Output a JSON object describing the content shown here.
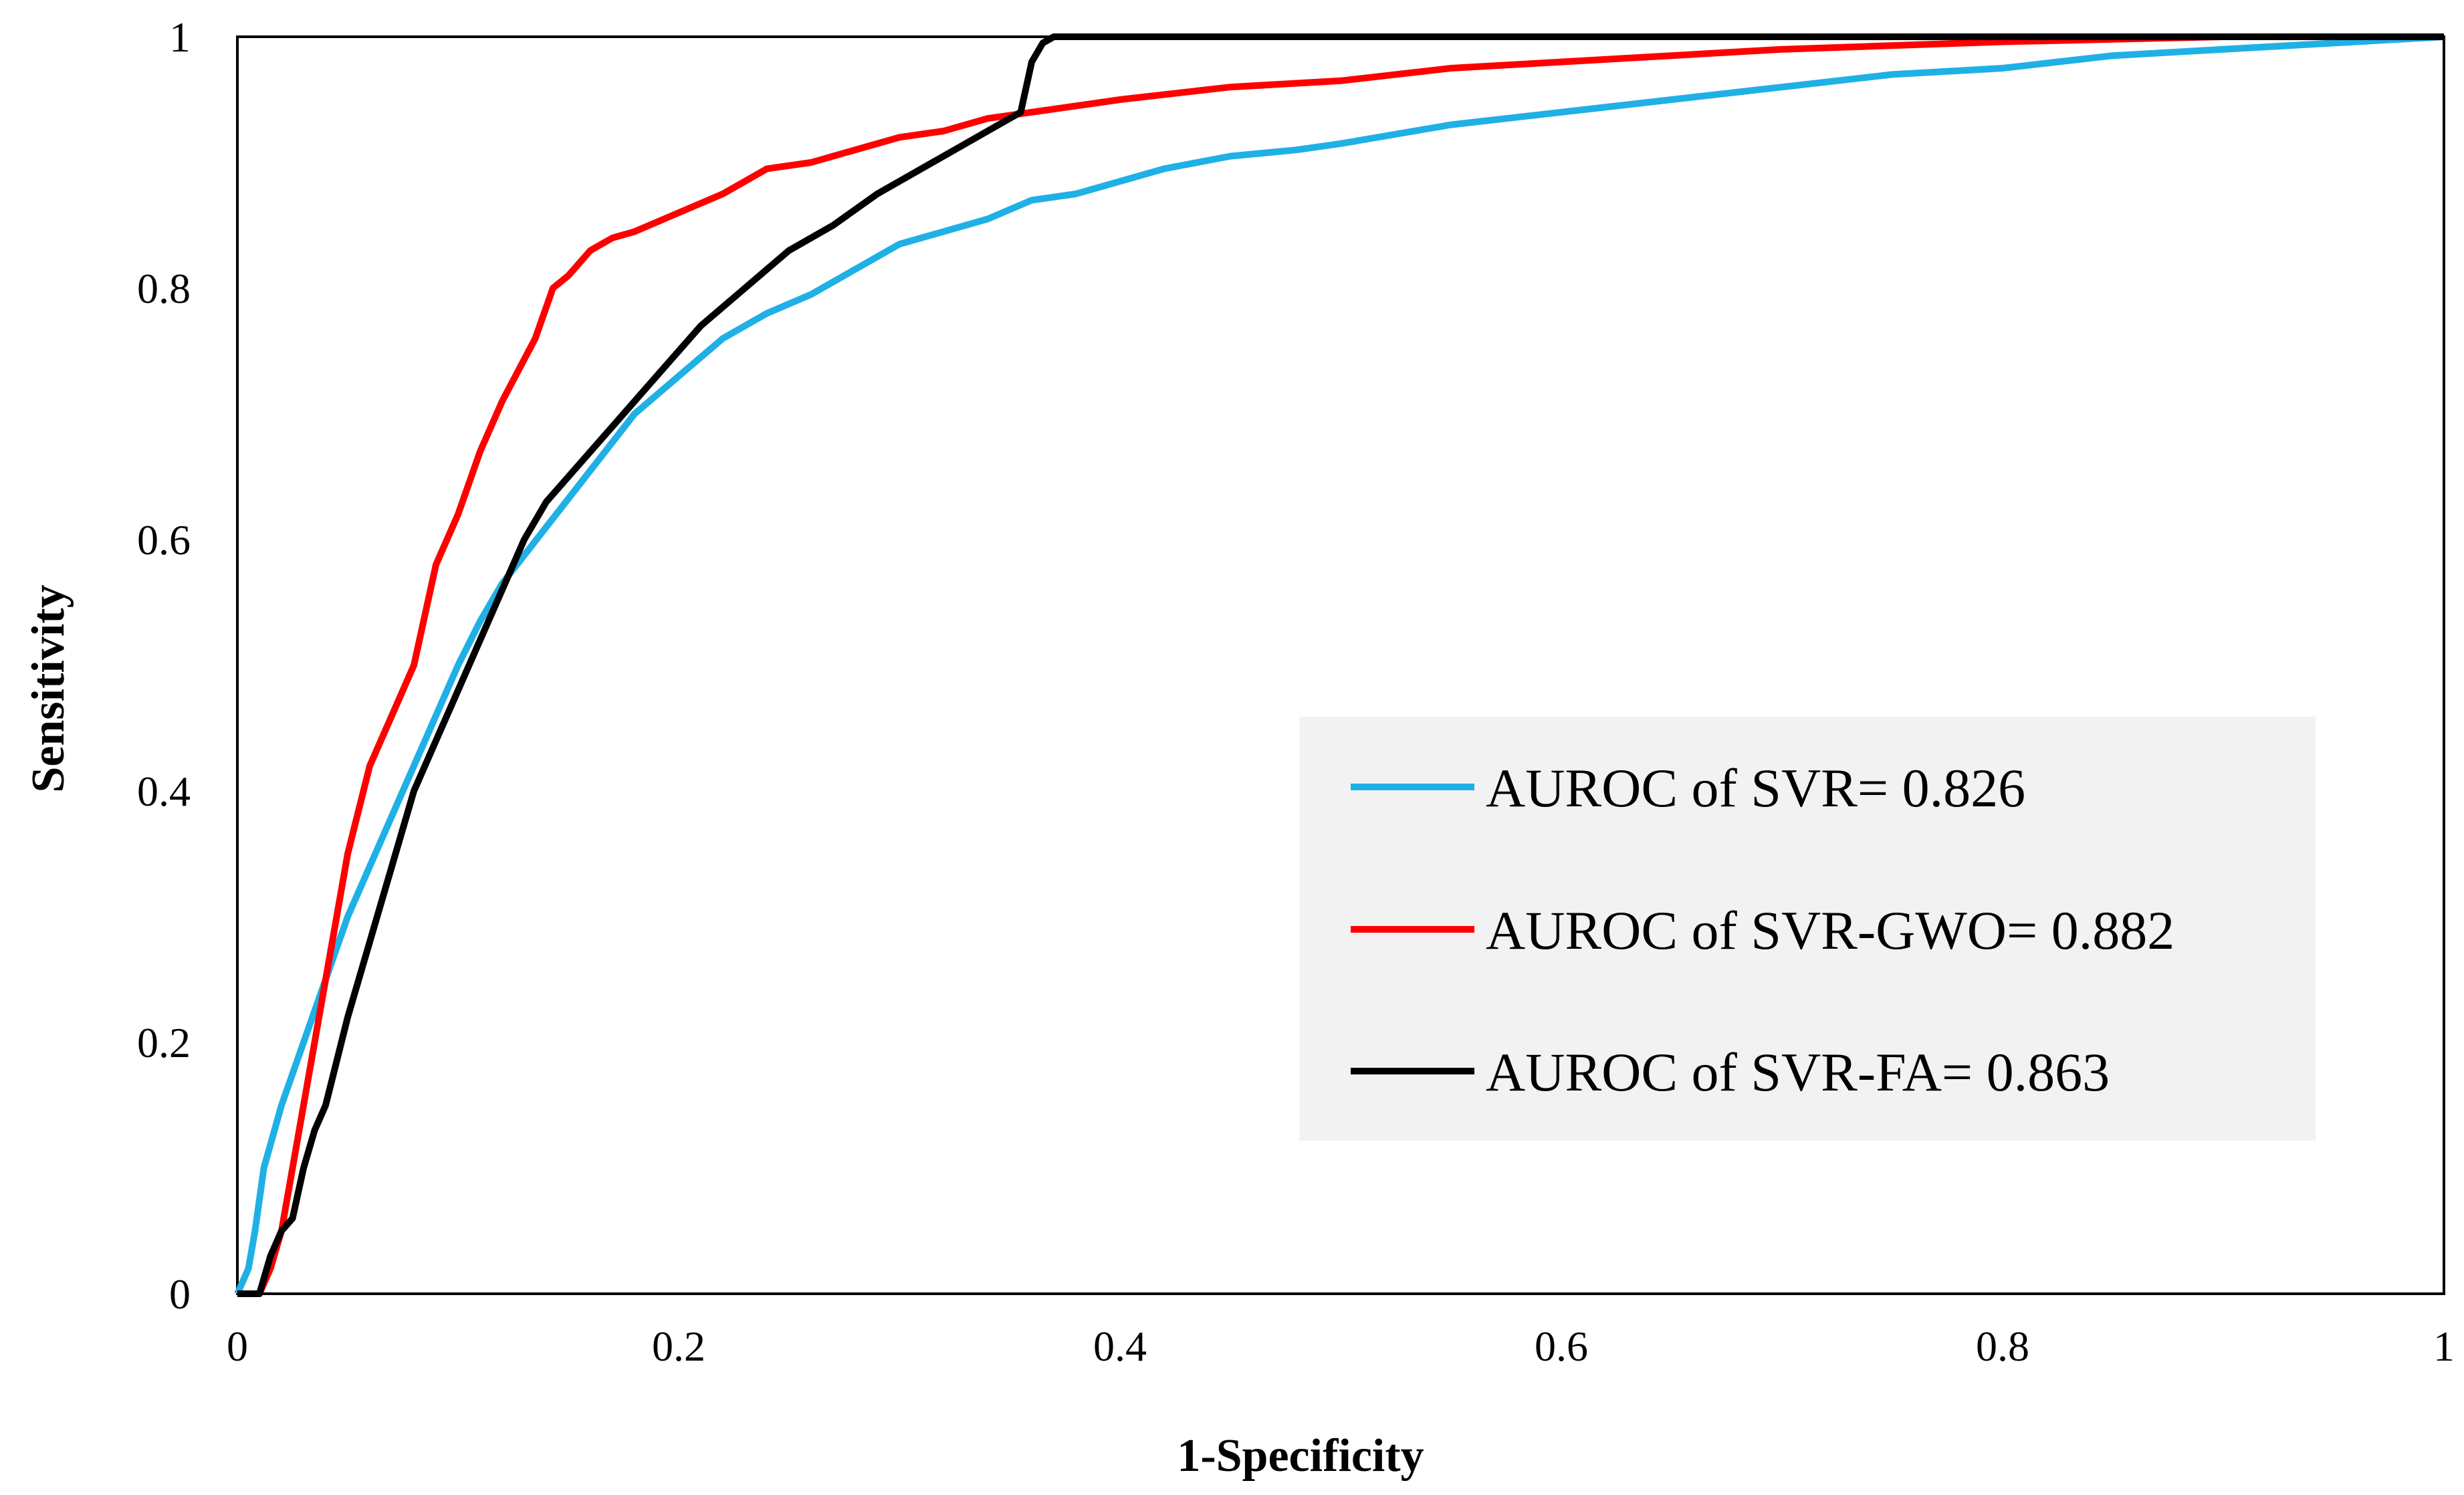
{
  "chart_data": {
    "type": "line",
    "title": "",
    "xlabel": "1-Specificity",
    "ylabel": "Sensitivity",
    "xlim": [
      0,
      1
    ],
    "ylim": [
      0,
      1
    ],
    "xticks": [
      "0",
      "0.2",
      "0.4",
      "0.6",
      "0.8",
      "1"
    ],
    "yticks": [
      "0",
      "0.2",
      "0.4",
      "0.6",
      "0.8",
      "1"
    ],
    "grid": false,
    "legend_position": "lower-right",
    "legend_background": "#f2f2f2",
    "series": [
      {
        "name": "AUROC of SVR= 0.826",
        "color": "#1fb0e6",
        "x": [
          0,
          0.005,
          0.008,
          0.012,
          0.02,
          0.03,
          0.04,
          0.05,
          0.06,
          0.07,
          0.08,
          0.09,
          0.1,
          0.11,
          0.12,
          0.14,
          0.16,
          0.18,
          0.2,
          0.22,
          0.24,
          0.26,
          0.28,
          0.3,
          0.32,
          0.34,
          0.36,
          0.38,
          0.4,
          0.42,
          0.45,
          0.48,
          0.5,
          0.55,
          0.6,
          0.65,
          0.7,
          0.75,
          0.8,
          0.85,
          0.9,
          0.95,
          1.0
        ],
        "y": [
          0,
          0.02,
          0.05,
          0.1,
          0.15,
          0.2,
          0.25,
          0.3,
          0.34,
          0.38,
          0.42,
          0.46,
          0.5,
          0.535,
          0.565,
          0.61,
          0.655,
          0.7,
          0.73,
          0.76,
          0.78,
          0.795,
          0.815,
          0.835,
          0.845,
          0.855,
          0.87,
          0.875,
          0.885,
          0.895,
          0.905,
          0.91,
          0.915,
          0.93,
          0.94,
          0.95,
          0.96,
          0.97,
          0.975,
          0.985,
          0.99,
          0.995,
          1.0
        ]
      },
      {
        "name": "AUROC of SVR-GWO= 0.882",
        "color": "#ff0000",
        "x": [
          0,
          0.01,
          0.015,
          0.02,
          0.03,
          0.04,
          0.05,
          0.06,
          0.07,
          0.08,
          0.09,
          0.1,
          0.11,
          0.12,
          0.135,
          0.143,
          0.15,
          0.16,
          0.17,
          0.18,
          0.2,
          0.22,
          0.24,
          0.26,
          0.28,
          0.3,
          0.32,
          0.34,
          0.36,
          0.38,
          0.4,
          0.45,
          0.5,
          0.55,
          0.6,
          0.65,
          0.7,
          0.75,
          0.8,
          0.85,
          0.9,
          1.0
        ],
        "y": [
          0,
          0,
          0.02,
          0.05,
          0.15,
          0.25,
          0.35,
          0.42,
          0.46,
          0.5,
          0.58,
          0.62,
          0.67,
          0.71,
          0.76,
          0.8,
          0.81,
          0.83,
          0.84,
          0.845,
          0.86,
          0.875,
          0.895,
          0.9,
          0.91,
          0.92,
          0.925,
          0.935,
          0.94,
          0.945,
          0.95,
          0.96,
          0.965,
          0.975,
          0.98,
          0.985,
          0.99,
          0.993,
          0.996,
          0.998,
          1.0,
          1.0
        ]
      },
      {
        "name": "AUROC of SVR-FA= 0.863",
        "color": "#000000",
        "x": [
          0,
          0.01,
          0.015,
          0.02,
          0.025,
          0.03,
          0.035,
          0.04,
          0.05,
          0.06,
          0.07,
          0.08,
          0.09,
          0.1,
          0.11,
          0.12,
          0.13,
          0.14,
          0.15,
          0.17,
          0.19,
          0.21,
          0.23,
          0.25,
          0.27,
          0.29,
          0.31,
          0.33,
          0.35,
          0.355,
          0.36,
          0.365,
          0.37,
          0.38,
          0.4,
          0.5,
          0.6,
          0.7,
          0.8,
          0.9,
          1.0
        ],
        "y": [
          0,
          0,
          0.03,
          0.05,
          0.06,
          0.1,
          0.13,
          0.15,
          0.22,
          0.28,
          0.34,
          0.4,
          0.44,
          0.48,
          0.52,
          0.56,
          0.6,
          0.63,
          0.65,
          0.69,
          0.73,
          0.77,
          0.8,
          0.83,
          0.85,
          0.875,
          0.895,
          0.915,
          0.935,
          0.94,
          0.98,
          0.995,
          1.0,
          1.0,
          1.0,
          1.0,
          1.0,
          1.0,
          1.0,
          1.0,
          1.0
        ]
      }
    ]
  }
}
